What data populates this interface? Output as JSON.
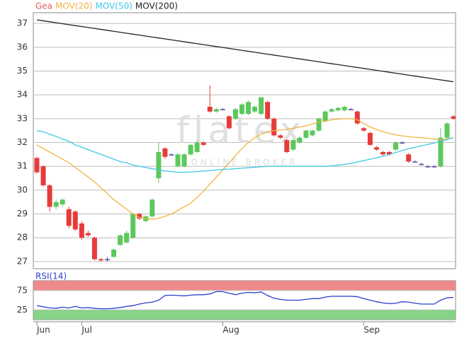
{
  "chart_data": [
    {
      "type": "candlestick",
      "watermark": [
        "flatex",
        "ONLINE BROKER"
      ],
      "categories": [
        "Jun",
        null,
        null,
        null,
        null,
        null,
        null,
        "Jul",
        null,
        null,
        null,
        null,
        null,
        null,
        null,
        null,
        null,
        null,
        null,
        null,
        null,
        null,
        null,
        null,
        null,
        null,
        null,
        null,
        null,
        "Aug",
        null,
        null,
        null,
        null,
        null,
        null,
        null,
        null,
        null,
        null,
        null,
        null,
        null,
        null,
        null,
        null,
        null,
        null,
        null,
        null,
        null,
        "Sep",
        null,
        null,
        null,
        null,
        null,
        null,
        null,
        null,
        null,
        null,
        null,
        null,
        null,
        null
      ],
      "ylim": [
        26.7,
        37.45
      ],
      "yticks": [
        27,
        28,
        29,
        30,
        31,
        32,
        33,
        34,
        35,
        36,
        37
      ],
      "grid": true,
      "up_color": "#5cc85c",
      "down_color": "#e83a3a",
      "flat_color": "#5a4fa0",
      "series": [
        {
          "name": "Gea",
          "type": "candlestick",
          "color": "#e06060",
          "open": [
            31.35,
            31.0,
            30.2,
            29.3,
            29.4,
            29.2,
            29.1,
            28.6,
            28.2,
            28.0,
            27.1,
            27.1,
            27.2,
            27.7,
            27.8,
            28.0,
            29.0,
            28.7,
            28.9,
            30.5,
            31.75,
            31.5,
            31.0,
            31.0,
            31.5,
            31.6,
            32.0,
            33.5,
            33.3,
            33.4,
            33.1,
            33.0,
            33.2,
            33.2,
            33.3,
            33.2,
            33.7,
            33.0,
            32.3,
            32.1,
            31.7,
            32.0,
            32.2,
            32.3,
            32.5,
            32.9,
            33.3,
            33.35,
            33.35,
            33.4,
            33.3,
            32.6,
            32.4,
            31.8,
            31.6,
            31.6,
            31.7,
            32.0,
            31.5,
            31.2,
            31.1,
            31.0,
            31.0,
            31.0,
            32.2,
            33.1
          ],
          "high": [
            31.4,
            31.05,
            30.25,
            29.6,
            29.65,
            29.3,
            29.15,
            28.7,
            28.3,
            28.05,
            27.15,
            27.2,
            27.55,
            28.15,
            28.3,
            29.05,
            29.05,
            28.95,
            29.65,
            32.0,
            31.8,
            31.55,
            31.55,
            31.55,
            31.95,
            32.1,
            32.05,
            34.4,
            33.45,
            33.45,
            33.15,
            33.45,
            33.65,
            33.75,
            33.55,
            33.9,
            33.75,
            33.05,
            32.35,
            32.15,
            32.15,
            32.25,
            32.55,
            32.55,
            33.05,
            33.35,
            33.45,
            33.5,
            33.55,
            33.45,
            33.35,
            32.65,
            32.45,
            31.85,
            31.65,
            31.65,
            32.05,
            32.05,
            31.55,
            31.25,
            31.15,
            31.05,
            31.05,
            32.6,
            32.85,
            33.15
          ],
          "low": [
            30.7,
            30.15,
            29.1,
            29.2,
            29.3,
            28.4,
            28.3,
            27.9,
            28.05,
            27.05,
            27.0,
            27.0,
            27.15,
            27.65,
            27.75,
            27.95,
            28.75,
            28.65,
            28.85,
            30.3,
            31.3,
            31.45,
            30.95,
            30.95,
            31.45,
            31.55,
            31.85,
            33.25,
            33.25,
            33.35,
            32.55,
            32.95,
            33.15,
            33.15,
            33.25,
            33.15,
            32.95,
            32.25,
            32.15,
            31.55,
            31.65,
            31.95,
            32.15,
            32.25,
            32.45,
            32.85,
            33.25,
            33.3,
            33.3,
            33.35,
            32.75,
            32.45,
            31.85,
            31.65,
            31.45,
            31.45,
            31.65,
            31.95,
            31.15,
            31.15,
            31.05,
            30.95,
            30.95,
            30.95,
            32.15,
            32.95
          ],
          "close": [
            30.75,
            30.2,
            29.3,
            29.5,
            29.6,
            28.5,
            28.35,
            28.0,
            28.1,
            27.1,
            27.05,
            27.1,
            27.5,
            28.1,
            28.2,
            29.0,
            28.8,
            28.9,
            29.6,
            31.6,
            31.4,
            31.5,
            31.5,
            31.5,
            31.9,
            32.0,
            31.9,
            33.3,
            33.4,
            33.4,
            32.6,
            33.4,
            33.6,
            33.7,
            33.5,
            33.9,
            33.0,
            32.3,
            32.2,
            31.6,
            32.1,
            32.2,
            32.5,
            32.5,
            33.0,
            33.3,
            33.4,
            33.45,
            33.5,
            33.4,
            32.8,
            32.5,
            31.9,
            31.7,
            31.5,
            31.5,
            32.0,
            32.0,
            31.2,
            31.2,
            31.1,
            31.0,
            31.0,
            32.2,
            32.8,
            33.0
          ]
        },
        {
          "name": "MOV(20)",
          "type": "line",
          "color": "#f0b440",
          "values": [
            31.9,
            31.75,
            31.6,
            31.45,
            31.3,
            31.15,
            30.95,
            30.75,
            30.55,
            30.35,
            30.1,
            29.85,
            29.6,
            29.4,
            29.2,
            29.0,
            28.85,
            28.8,
            28.78,
            28.82,
            28.9,
            29.0,
            29.15,
            29.3,
            29.45,
            29.7,
            29.95,
            30.25,
            30.55,
            30.85,
            31.15,
            31.45,
            31.75,
            32.0,
            32.2,
            32.35,
            32.45,
            32.5,
            32.52,
            32.55,
            32.6,
            32.65,
            32.7,
            32.78,
            32.85,
            32.9,
            32.95,
            32.98,
            33.0,
            33.0,
            32.95,
            32.8,
            32.65,
            32.55,
            32.45,
            32.38,
            32.32,
            32.28,
            32.25,
            32.22,
            32.2,
            32.18,
            32.15,
            32.12,
            32.15,
            32.2
          ]
        },
        {
          "name": "MOV(50)",
          "type": "line",
          "color": "#40c8e8",
          "values": [
            32.5,
            32.45,
            32.35,
            32.25,
            32.15,
            32.05,
            31.9,
            31.8,
            31.7,
            31.6,
            31.5,
            31.4,
            31.3,
            31.2,
            31.15,
            31.05,
            31.0,
            30.95,
            30.9,
            30.85,
            30.8,
            30.78,
            30.75,
            30.75,
            30.76,
            30.78,
            30.8,
            30.82,
            30.85,
            30.87,
            30.88,
            30.9,
            30.92,
            30.94,
            30.96,
            30.98,
            31.0,
            31.0,
            31.0,
            31.0,
            31.0,
            31.0,
            31.0,
            31.0,
            31.0,
            31.0,
            31.02,
            31.05,
            31.08,
            31.12,
            31.18,
            31.24,
            31.3,
            31.36,
            31.42,
            31.5,
            31.58,
            31.66,
            31.74,
            31.8,
            31.86,
            31.92,
            31.98,
            32.05,
            32.12,
            32.2
          ]
        },
        {
          "name": "MOV(200)",
          "type": "line",
          "color": "#222222",
          "values": [
            37.15,
            37.11,
            37.07,
            37.03,
            36.99,
            36.95,
            36.91,
            36.87,
            36.83,
            36.79,
            36.75,
            36.71,
            36.67,
            36.63,
            36.59,
            36.55,
            36.51,
            36.47,
            36.43,
            36.39,
            36.35,
            36.31,
            36.27,
            36.23,
            36.19,
            36.15,
            36.11,
            36.07,
            36.03,
            35.99,
            35.95,
            35.91,
            35.87,
            35.83,
            35.79,
            35.75,
            35.71,
            35.67,
            35.63,
            35.59,
            35.55,
            35.51,
            35.47,
            35.43,
            35.39,
            35.35,
            35.31,
            35.27,
            35.23,
            35.19,
            35.15,
            35.11,
            35.07,
            35.03,
            34.99,
            34.95,
            34.91,
            34.87,
            34.83,
            34.79,
            34.75,
            34.71,
            34.67,
            34.63,
            34.59,
            34.55
          ]
        }
      ]
    },
    {
      "type": "line",
      "ylim": [
        0,
        100
      ],
      "yticks": [
        25,
        75
      ],
      "grid": true,
      "zones": [
        {
          "from": 75,
          "to": 100,
          "color": "#f08a8a"
        },
        {
          "from": 0,
          "to": 25,
          "color": "#86d486"
        }
      ],
      "series": [
        {
          "name": "RSI(14)",
          "color": "#2a3fd0",
          "values": [
            36,
            33,
            30,
            29,
            32,
            30,
            34,
            30,
            31,
            29,
            28,
            28,
            29,
            31,
            34,
            36,
            40,
            43,
            45,
            50,
            62,
            63,
            62,
            61,
            63,
            64,
            64,
            66,
            72,
            72,
            68,
            64,
            68,
            70,
            69,
            71,
            62,
            55,
            52,
            50,
            50,
            50,
            52,
            54,
            54,
            58,
            60,
            60,
            60,
            60,
            59,
            54,
            50,
            46,
            43,
            41,
            42,
            46,
            45,
            42,
            40,
            40,
            40,
            50,
            56,
            57
          ]
        }
      ]
    }
  ]
}
